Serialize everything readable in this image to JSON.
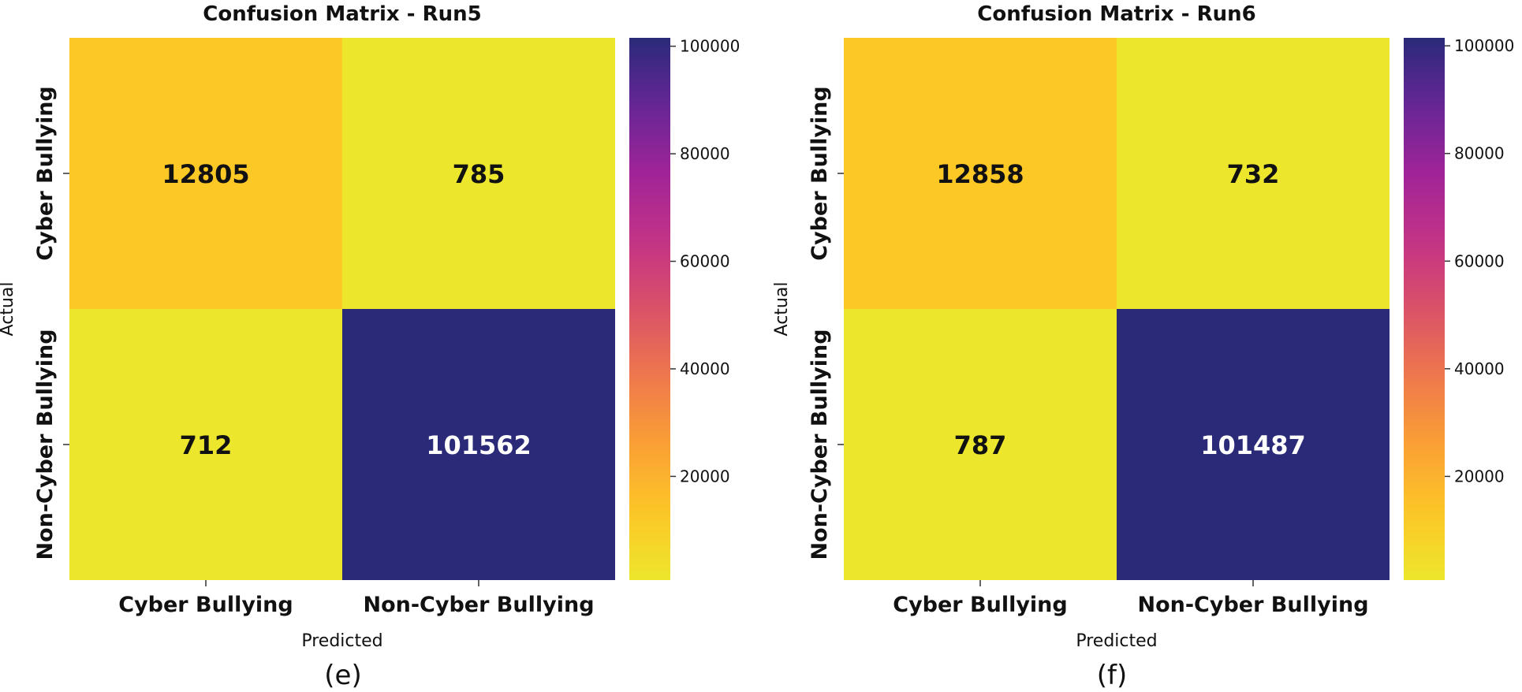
{
  "chart_data": [
    {
      "type": "heatmap",
      "title": "Confusion Matrix - Run5",
      "caption": "(e)",
      "xlabel": "Predicted",
      "ylabel": "Actual",
      "x_categories": [
        "Cyber Bullying",
        "Non-Cyber Bullying"
      ],
      "y_categories": [
        "Cyber Bullying",
        "Non-Cyber Bullying"
      ],
      "values": [
        [
          12805,
          785
        ],
        [
          712,
          101562
        ]
      ],
      "colorbar": {
        "ticks": [
          20000,
          40000,
          60000,
          80000,
          100000
        ],
        "range": [
          712,
          101562
        ],
        "colormap": "plasma_r"
      }
    },
    {
      "type": "heatmap",
      "title": "Confusion Matrix - Run6",
      "caption": "(f)",
      "xlabel": "Predicted",
      "ylabel": "Actual",
      "x_categories": [
        "Cyber Bullying",
        "Non-Cyber Bullying"
      ],
      "y_categories": [
        "Cyber Bullying",
        "Non-Cyber Bullying"
      ],
      "values": [
        [
          12858,
          732
        ],
        [
          787,
          101487
        ]
      ],
      "colorbar": {
        "ticks": [
          20000,
          40000,
          60000,
          80000,
          100000
        ],
        "range": [
          732,
          101487
        ],
        "colormap": "plasma_r"
      }
    }
  ]
}
